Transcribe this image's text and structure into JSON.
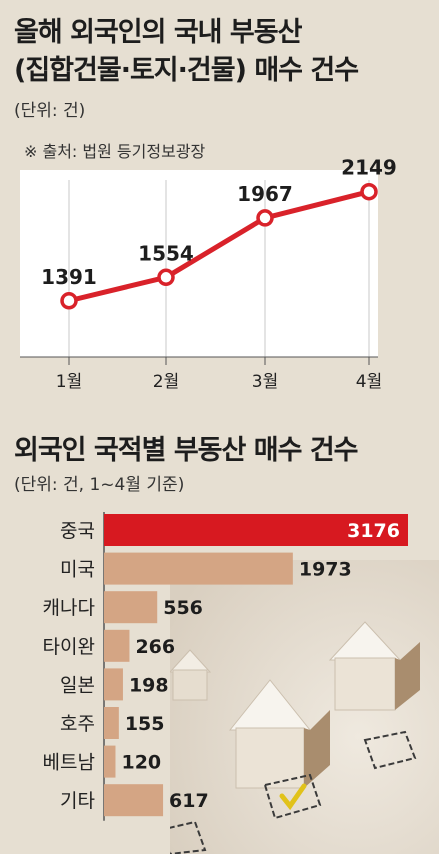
{
  "line_section": {
    "title_line1": "올해 외국인의 국내 부동산",
    "title_line2": "(집합건물·토지·건물) 매수 건수",
    "unit": "(단위: 건)",
    "source": "※ 출처: 법원 등기정보광장"
  },
  "bar_section": {
    "title": "외국인 국적별 부동산 매수 건수",
    "unit": "(단위: 건, 1~4월 기준)"
  },
  "colors": {
    "line": "#d9222a",
    "highlight_bar": "#d71920",
    "bar": "#d4a584",
    "background": "#e6dfd2",
    "plot_bg": "#ffffff"
  },
  "chart_data": [
    {
      "type": "line",
      "categories": [
        "1월",
        "2월",
        "3월",
        "4월"
      ],
      "values": [
        1391,
        1554,
        1967,
        2149
      ],
      "ylim": [
        1000,
        2300
      ],
      "grid": true
    },
    {
      "type": "bar",
      "orientation": "horizontal",
      "categories": [
        "중국",
        "미국",
        "캐나다",
        "타이완",
        "일본",
        "호주",
        "베트남",
        "기타"
      ],
      "values": [
        3176,
        1973,
        556,
        266,
        198,
        155,
        120,
        617
      ],
      "xlim": [
        0,
        3176
      ]
    }
  ]
}
